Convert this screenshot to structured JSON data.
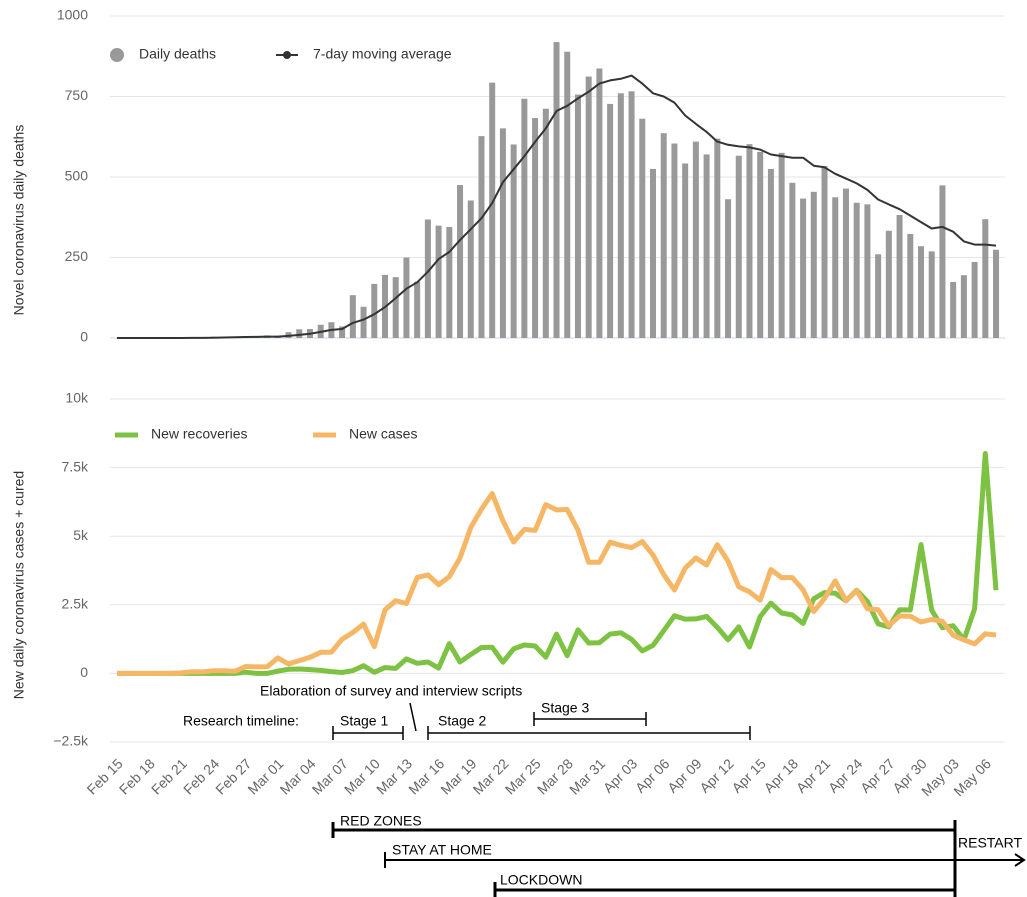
{
  "chart_data": [
    {
      "type": "bar-line",
      "y_label": "Novel coronavirus daily deaths",
      "categories": [
        "Feb 15",
        null,
        null,
        "Feb 18",
        null,
        null,
        "Feb 21",
        null,
        null,
        "Feb 24",
        null,
        null,
        "Feb 27",
        null,
        null,
        "Mar 01",
        null,
        null,
        "Mar 04",
        null,
        null,
        "Mar 07",
        null,
        null,
        "Mar 10",
        null,
        null,
        "Mar 13",
        null,
        null,
        "Mar 16",
        null,
        null,
        "Mar 19",
        null,
        null,
        "Mar 22",
        null,
        null,
        "Mar 25",
        null,
        null,
        "Mar 28",
        null,
        null,
        "Mar 31",
        null,
        null,
        "Apr 03",
        null,
        null,
        "Apr 06",
        null,
        null,
        "Apr 09",
        null,
        null,
        "Apr 12",
        null,
        null,
        "Apr 15",
        null,
        null,
        "Apr 18",
        null,
        null,
        "Apr 21",
        null,
        null,
        "Apr 24",
        null,
        null,
        "Apr 27",
        null,
        null,
        "Apr 30",
        null,
        null,
        "May 03",
        null,
        null,
        "May 06",
        null
      ],
      "series": [
        {
          "name": "Daily deaths",
          "kind": "bar",
          "color": "#999999",
          "values": [
            0,
            0,
            0,
            0,
            0,
            0,
            1,
            1,
            1,
            4,
            4,
            1,
            5,
            4,
            8,
            5,
            18,
            27,
            28,
            41,
            49,
            36,
            133,
            97,
            168,
            196,
            189,
            250,
            175,
            368,
            349,
            345,
            475,
            427,
            627,
            793,
            651,
            601,
            743,
            683,
            712,
            919,
            889,
            756,
            812,
            837,
            727,
            760,
            766,
            681,
            525,
            636,
            604,
            542,
            610,
            570,
            619,
            431,
            566,
            602,
            578,
            525,
            575,
            482,
            433,
            454,
            534,
            437,
            464,
            420,
            415,
            260,
            333,
            382,
            323,
            285,
            269,
            474,
            174,
            195,
            236,
            369,
            274
          ]
        },
        {
          "name": "7-day moving average",
          "kind": "line",
          "color": "#333333",
          "values": [
            0,
            0,
            0,
            0,
            0,
            0,
            0.1,
            0.3,
            0.4,
            1,
            1.6,
            2.3,
            3,
            3.4,
            4.4,
            4.4,
            6.4,
            9.6,
            13,
            19,
            25,
            28,
            47,
            57,
            74,
            96,
            124,
            153,
            173,
            206,
            245,
            267,
            304,
            338,
            372,
            419,
            484,
            524,
            565,
            609,
            651,
            705,
            721,
            744,
            765,
            790,
            800,
            805,
            815,
            790,
            760,
            750,
            731,
            691,
            665,
            640,
            610,
            600,
            595,
            592,
            585,
            570,
            565,
            560,
            560,
            535,
            530,
            510,
            495,
            480,
            460,
            430,
            415,
            400,
            380,
            360,
            340,
            345,
            330,
            300,
            290,
            290,
            287
          ]
        }
      ],
      "ylim": [
        0,
        1000
      ],
      "yticks": [
        0,
        250,
        500,
        750,
        1000
      ],
      "grid": true
    },
    {
      "type": "line",
      "y_label": "New daily coronavirus cases + cured",
      "categories": [
        "Feb 15",
        null,
        null,
        "Feb 18",
        null,
        null,
        "Feb 21",
        null,
        null,
        "Feb 24",
        null,
        null,
        "Feb 27",
        null,
        null,
        "Mar 01",
        null,
        null,
        "Mar 04",
        null,
        null,
        "Mar 07",
        null,
        null,
        "Mar 10",
        null,
        null,
        "Mar 13",
        null,
        null,
        "Mar 16",
        null,
        null,
        "Mar 19",
        null,
        null,
        "Mar 22",
        null,
        null,
        "Mar 25",
        null,
        null,
        "Mar 28",
        null,
        null,
        "Mar 31",
        null,
        null,
        "Apr 03",
        null,
        null,
        "Apr 06",
        null,
        null,
        "Apr 09",
        null,
        null,
        "Apr 12",
        null,
        null,
        "Apr 15",
        null,
        null,
        "Apr 18",
        null,
        null,
        "Apr 21",
        null,
        null,
        "Apr 24",
        null,
        null,
        "Apr 27",
        null,
        null,
        "Apr 30",
        null,
        null,
        "May 03",
        null,
        null,
        "May 06",
        null
      ],
      "series": [
        {
          "name": "New recoveries",
          "color": "#7dc242",
          "values": [
            0,
            0,
            0,
            0,
            0,
            0,
            0,
            0,
            0,
            0,
            0,
            0,
            45,
            1,
            0,
            83,
            149,
            160,
            138,
            109,
            66,
            33,
            102,
            280,
            41,
            213,
            181,
            527,
            369,
            414,
            192,
            1084,
            415,
            689,
            943,
            952,
            408,
            894,
            1036,
            999,
            589,
            1434,
            646,
            1590,
            1109,
            1118,
            1431,
            1480,
            1238,
            819,
            1022,
            1555,
            2099,
            1979,
            1985,
            2079,
            1677,
            1224,
            1695,
            962,
            2072,
            2563,
            2200,
            2128,
            1822,
            2723,
            2943,
            2922,
            2646,
            3033,
            2622,
            1808,
            1696,
            2317,
            2311,
            4693,
            2304,
            1665,
            1740,
            1225,
            2352,
            8014,
            3031
          ]
        },
        {
          "name": "New cases",
          "color": "#f5b766",
          "values": [
            0,
            0,
            0,
            0,
            0,
            0,
            17,
            62,
            53,
            97,
            93,
            78,
            250,
            238,
            240,
            566,
            342,
            466,
            587,
            769,
            778,
            1247,
            1492,
            1797,
            977,
            2313,
            2651,
            2547,
            3497,
            3590,
            3233,
            3526,
            4207,
            5322,
            5986,
            6557,
            5560,
            4789,
            5249,
            5210,
            6153,
            5959,
            5974,
            5217,
            4050,
            4053,
            4782,
            4668,
            4585,
            4805,
            4316,
            3599,
            3039,
            3836,
            4204,
            3951,
            4694,
            4092,
            3153,
            2972,
            2667,
            3786,
            3493,
            3491,
            3047,
            2256,
            2729,
            3370,
            2646,
            3021,
            2357,
            2324,
            1739,
            2091,
            2086,
            1872,
            1965,
            1900,
            1389,
            1221,
            1075,
            1444,
            1401
          ]
        }
      ],
      "ylim": [
        -2500,
        10000
      ],
      "yticks": [
        {
          "value": -2500,
          "label": "−2.5k"
        },
        0,
        {
          "value": 2500,
          "label": "2.5k"
        },
        {
          "value": 5000,
          "label": "5k"
        },
        {
          "value": 7500,
          "label": "7.5k"
        },
        {
          "value": 10000,
          "label": "10k"
        }
      ],
      "grid": true,
      "annotations": [
        "Elaboration of survey and interview scripts",
        "Research timeline:",
        "Stage 1",
        "Stage 2",
        "Stage 3",
        "RED ZONES",
        "STAY AT HOME",
        "LOCKDOWN",
        "RESTART"
      ]
    }
  ]
}
